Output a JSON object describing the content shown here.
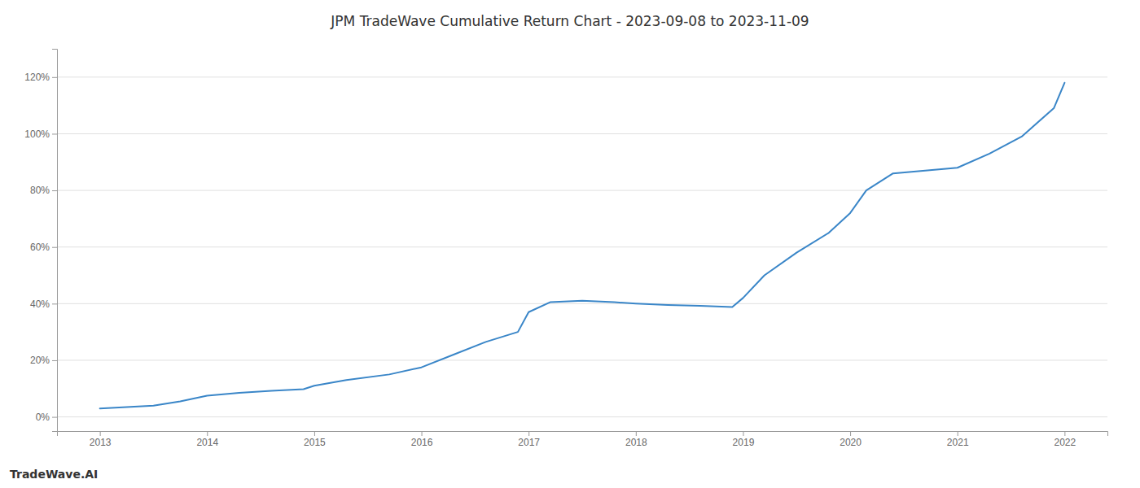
{
  "chart_data": {
    "type": "line",
    "title": "JPM TradeWave Cumulative Return Chart - 2023-09-08 to 2023-11-09",
    "annotations": [
      "TradeWave.AI"
    ],
    "x": [
      2013,
      2013.5,
      2013.75,
      2014,
      2014.3,
      2014.6,
      2014.9,
      2015,
      2015.3,
      2015.7,
      2016,
      2016.3,
      2016.6,
      2016.9,
      2017,
      2017.2,
      2017.5,
      2017.8,
      2018,
      2018.3,
      2018.6,
      2018.9,
      2019,
      2019.2,
      2019.5,
      2019.8,
      2020,
      2020.15,
      2020.4,
      2020.7,
      2021,
      2021.3,
      2021.6,
      2021.9,
      2022
    ],
    "values": [
      3.0,
      4.0,
      5.5,
      7.5,
      8.5,
      9.2,
      9.8,
      11.0,
      13.0,
      15.0,
      17.5,
      22.0,
      26.5,
      30.0,
      37.0,
      40.5,
      41.0,
      40.5,
      40.0,
      39.5,
      39.2,
      38.8,
      42.0,
      50.0,
      58.0,
      65.0,
      72.0,
      80.0,
      86.0,
      87.0,
      88.0,
      93.0,
      99.0,
      109.0,
      118.0
    ],
    "color": "#3a86c8",
    "xlim": [
      2012.6,
      2022.4
    ],
    "ylim": [
      -5,
      130
    ],
    "xticks": [
      2013,
      2014,
      2015,
      2016,
      2017,
      2018,
      2019,
      2020,
      2021,
      2022
    ],
    "yticks": [
      {
        "value": 0,
        "label": "0%"
      },
      {
        "value": 20,
        "label": "20%"
      },
      {
        "value": 40,
        "label": "40%"
      },
      {
        "value": 60,
        "label": "60%"
      },
      {
        "value": 80,
        "label": "80%"
      },
      {
        "value": 100,
        "label": "100%"
      },
      {
        "value": 120,
        "label": "120%"
      }
    ],
    "grid": "y"
  }
}
